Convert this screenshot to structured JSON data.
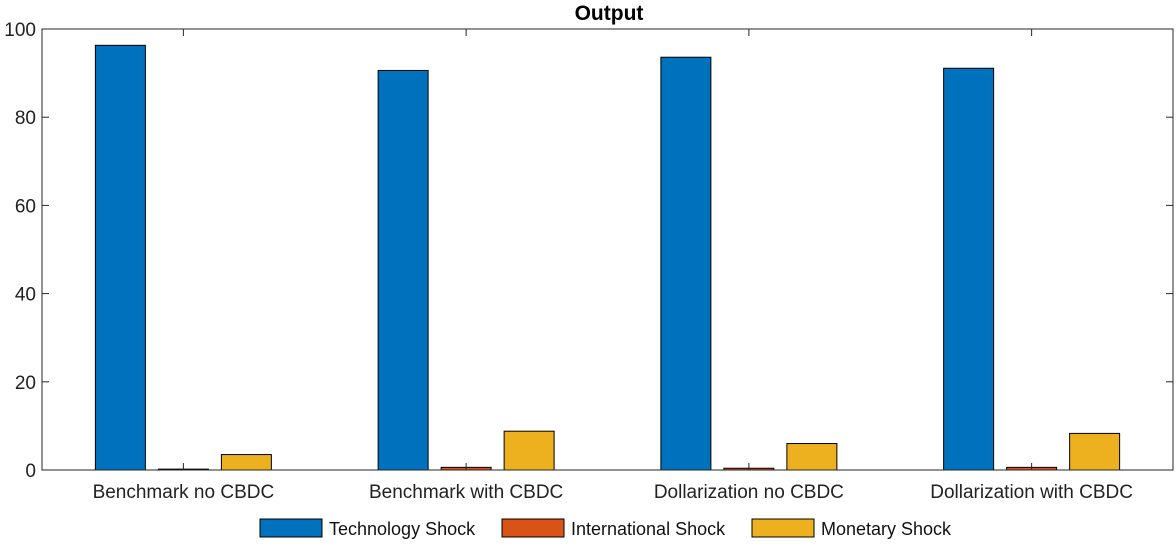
{
  "chart_data": {
    "type": "bar",
    "title": "Output",
    "xlabel": "",
    "ylabel": "",
    "categories": [
      "Benchmark no CBDC",
      "Benchmark with CBDC",
      "Dollarization no CBDC",
      "Dollarization with CBDC"
    ],
    "series": [
      {
        "name": "Technology Shock",
        "color": "#0072BD",
        "values": [
          96.3,
          90.6,
          93.6,
          91.1
        ]
      },
      {
        "name": "International Shock",
        "color": "#D95319",
        "values": [
          0.2,
          0.6,
          0.4,
          0.6
        ]
      },
      {
        "name": "Monetary Shock",
        "color": "#EDB120",
        "values": [
          3.5,
          8.8,
          6.0,
          8.3
        ]
      }
    ],
    "ylim": [
      0,
      100
    ],
    "yticks": [
      0,
      20,
      40,
      60,
      80,
      100
    ],
    "grid": false,
    "legend_position": "bottom"
  }
}
